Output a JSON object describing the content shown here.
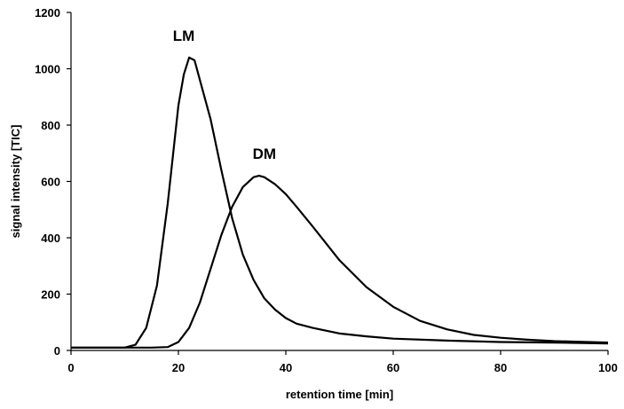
{
  "chart_data": {
    "type": "line",
    "xlabel": "retention time [min]",
    "ylabel": "signal intensity [TIC]",
    "xlim": [
      0,
      100
    ],
    "ylim": [
      0,
      1200
    ],
    "xticks": [
      0,
      20,
      40,
      60,
      80,
      100
    ],
    "yticks": [
      0,
      200,
      400,
      600,
      800,
      1000,
      1200
    ],
    "grid": false,
    "series": [
      {
        "name": "LM",
        "x": [
          0,
          5,
          10,
          12,
          14,
          16,
          18,
          20,
          21,
          22,
          23,
          24,
          26,
          28,
          30,
          32,
          34,
          36,
          38,
          40,
          42,
          45,
          50,
          55,
          60,
          70,
          80,
          90,
          100
        ],
        "y": [
          10,
          10,
          10,
          20,
          80,
          230,
          520,
          870,
          980,
          1040,
          1030,
          960,
          820,
          640,
          470,
          340,
          250,
          185,
          145,
          115,
          95,
          80,
          60,
          50,
          42,
          35,
          30,
          28,
          25
        ]
      },
      {
        "name": "DM",
        "x": [
          0,
          10,
          15,
          18,
          20,
          22,
          24,
          26,
          28,
          30,
          32,
          34,
          35,
          36,
          38,
          40,
          42,
          45,
          50,
          55,
          60,
          65,
          70,
          75,
          80,
          85,
          90,
          100
        ],
        "y": [
          10,
          10,
          10,
          12,
          30,
          80,
          170,
          290,
          410,
          510,
          580,
          615,
          620,
          615,
          590,
          555,
          510,
          440,
          320,
          225,
          155,
          105,
          75,
          55,
          45,
          38,
          33,
          28
        ]
      }
    ],
    "annotations": [
      {
        "text": "LM",
        "x": 21,
        "y": 1100
      },
      {
        "text": "DM",
        "x": 36,
        "y": 680
      }
    ]
  }
}
